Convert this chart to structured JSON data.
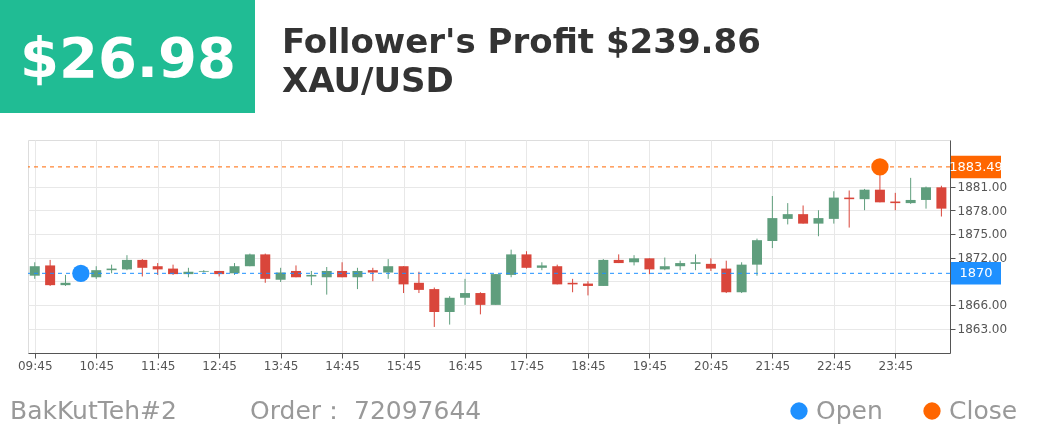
{
  "chart_data": {
    "type": "candlestick",
    "title": "Follower's Profit $239.86",
    "subtitle": "XAU/USD",
    "annotations": [
      "$26.98",
      "BakKutTeh#2",
      "Order：  72097644"
    ],
    "x": [
      9.75,
      10,
      10.25,
      10.75,
      11,
      11.25,
      11.5,
      11.75,
      12,
      12.25,
      12.5,
      12.75,
      13,
      13.25,
      13.5,
      13.75,
      14,
      14.25,
      14.5,
      14.75,
      15,
      15.25,
      15.5,
      15.75,
      16,
      16.25,
      16.5,
      16.75,
      17,
      17.25,
      17.5,
      17.75,
      18,
      18.25,
      18.5,
      18.75,
      19,
      19.25,
      19.5,
      19.75,
      20,
      20.25,
      20.5,
      20.75,
      21,
      21.25,
      21.5,
      21.75,
      22,
      22.25,
      22.5,
      22.75,
      23,
      23.25,
      23.5,
      23.75,
      24,
      24.25,
      24.5
    ],
    "ohlc": [
      [
        1869.7,
        1871.4,
        1869.3,
        1870.9
      ],
      [
        1871.0,
        1871.7,
        1868.4,
        1868.5
      ],
      [
        1868.5,
        1869.8,
        1868.4,
        1868.8
      ],
      [
        1869.5,
        1870.9,
        1869.3,
        1870.4
      ],
      [
        1870.4,
        1871.1,
        1870.0,
        1870.6
      ],
      [
        1870.5,
        1872.3,
        1870.4,
        1871.7
      ],
      [
        1871.7,
        1871.8,
        1869.6,
        1870.7
      ],
      [
        1870.9,
        1871.3,
        1869.8,
        1870.5
      ],
      [
        1870.6,
        1871.1,
        1869.8,
        1869.9
      ],
      [
        1869.9,
        1870.7,
        1869.5,
        1870.2
      ],
      [
        1870.2,
        1870.4,
        1870.1,
        1870.3
      ],
      [
        1870.3,
        1870.3,
        1869.6,
        1869.9
      ],
      [
        1870.0,
        1871.3,
        1869.8,
        1870.9
      ],
      [
        1870.9,
        1872.5,
        1870.9,
        1872.4
      ],
      [
        1872.4,
        1872.5,
        1868.8,
        1869.3
      ],
      [
        1869.2,
        1870.7,
        1868.9,
        1870.1
      ],
      [
        1870.3,
        1871.0,
        1869.5,
        1869.5
      ],
      [
        1869.6,
        1870.3,
        1868.5,
        1869.8
      ],
      [
        1869.5,
        1870.8,
        1867.3,
        1870.3
      ],
      [
        1870.3,
        1871.4,
        1869.5,
        1869.5
      ],
      [
        1869.5,
        1870.7,
        1868.0,
        1870.3
      ],
      [
        1870.4,
        1870.7,
        1869.0,
        1870.1
      ],
      [
        1870.1,
        1871.8,
        1869.3,
        1870.9
      ],
      [
        1870.9,
        1870.9,
        1867.5,
        1868.6
      ],
      [
        1868.8,
        1870.2,
        1867.5,
        1867.9
      ],
      [
        1868.0,
        1868.2,
        1863.2,
        1865.1
      ],
      [
        1865.1,
        1867.1,
        1863.5,
        1866.9
      ],
      [
        1866.9,
        1869.3,
        1866.0,
        1867.5
      ],
      [
        1867.5,
        1867.6,
        1864.8,
        1866.0
      ],
      [
        1866.0,
        1869.9,
        1866.0,
        1869.9
      ],
      [
        1869.8,
        1873.0,
        1869.5,
        1872.4
      ],
      [
        1872.4,
        1872.8,
        1870.6,
        1870.7
      ],
      [
        1870.7,
        1871.4,
        1870.4,
        1871.0
      ],
      [
        1870.9,
        1871.1,
        1868.6,
        1868.6
      ],
      [
        1868.8,
        1869.3,
        1867.6,
        1868.6
      ],
      [
        1868.7,
        1869.0,
        1867.2,
        1868.4
      ],
      [
        1868.4,
        1871.8,
        1868.4,
        1871.7
      ],
      [
        1871.7,
        1872.4,
        1871.3,
        1871.3
      ],
      [
        1871.4,
        1872.3,
        1871.0,
        1871.9
      ],
      [
        1871.9,
        1871.9,
        1869.9,
        1870.5
      ],
      [
        1870.5,
        1872.0,
        1870.4,
        1870.9
      ],
      [
        1870.9,
        1871.6,
        1870.4,
        1871.3
      ],
      [
        1871.2,
        1872.4,
        1870.4,
        1871.4
      ],
      [
        1871.2,
        1871.9,
        1870.3,
        1870.6
      ],
      [
        1870.6,
        1871.6,
        1867.5,
        1867.6
      ],
      [
        1867.6,
        1871.4,
        1867.5,
        1871.1
      ],
      [
        1871.1,
        1874.4,
        1869.7,
        1874.2
      ],
      [
        1874.1,
        1879.8,
        1873.2,
        1877.0
      ],
      [
        1876.9,
        1878.9,
        1876.2,
        1877.5
      ],
      [
        1877.5,
        1878.6,
        1876.3,
        1876.3
      ],
      [
        1876.3,
        1878.0,
        1874.7,
        1877.0
      ],
      [
        1876.9,
        1880.4,
        1876.3,
        1879.6
      ],
      [
        1879.6,
        1880.5,
        1875.8,
        1879.4
      ],
      [
        1879.4,
        1880.7,
        1878.0,
        1880.6
      ],
      [
        1880.6,
        1882.5,
        1879.0,
        1879.0
      ],
      [
        1879.1,
        1880.2,
        1878.0,
        1878.9
      ],
      [
        1878.9,
        1882.1,
        1878.8,
        1879.3
      ],
      [
        1879.3,
        1881.0,
        1878.2,
        1880.9
      ],
      [
        1880.9,
        1881.1,
        1877.2,
        1878.2
      ]
    ],
    "colors": [
      "#5f9e7d",
      "#d9463b",
      "#5f9e7d",
      "#5f9e7d",
      "#5f9e7d",
      "#5f9e7d",
      "#d9463b",
      "#d9463b",
      "#d9463b",
      "#5f9e7d",
      "#5f9e7d",
      "#d9463b",
      "#5f9e7d",
      "#5f9e7d",
      "#d9463b",
      "#5f9e7d",
      "#d9463b",
      "#5f9e7d",
      "#5f9e7d",
      "#d9463b",
      "#5f9e7d",
      "#d9463b",
      "#5f9e7d",
      "#d9463b",
      "#d9463b",
      "#d9463b",
      "#5f9e7d",
      "#5f9e7d",
      "#d9463b",
      "#5f9e7d",
      "#5f9e7d",
      "#d9463b",
      "#5f9e7d",
      "#d9463b",
      "#d9463b",
      "#d9463b",
      "#5f9e7d",
      "#d9463b",
      "#5f9e7d",
      "#d9463b",
      "#5f9e7d",
      "#5f9e7d",
      "#5f9e7d",
      "#d9463b",
      "#d9463b",
      "#5f9e7d",
      "#5f9e7d",
      "#5f9e7d",
      "#5f9e7d",
      "#d9463b",
      "#5f9e7d",
      "#5f9e7d",
      "#d9463b",
      "#5f9e7d",
      "#d9463b",
      "#d9463b",
      "#5f9e7d",
      "#5f9e7d",
      "#d9463b"
    ],
    "series": [
      {
        "name": "Open",
        "type": "scatter",
        "color": "#1e90ff",
        "x": [
          10.5
        ],
        "values": [
          1870
        ]
      },
      {
        "name": "Close",
        "type": "scatter",
        "color": "#ff6600",
        "x": [
          23.5
        ],
        "values": [
          1883.49
        ]
      }
    ],
    "marker": "circle",
    "ref_lines": [
      {
        "axis": "y",
        "value": 1883.49,
        "label": "1883.49",
        "color": "#ff6600",
        "line_style": "dashed"
      },
      {
        "axis": "y",
        "value": 1870,
        "label": "1870",
        "color": "#1e90ff",
        "line_style": "dashed"
      }
    ],
    "xlim": [
      9.64,
      24.64
    ],
    "xticks": [
      {
        "value": 9.75,
        "label": "09:45"
      },
      {
        "value": 10.75,
        "label": "10:45"
      },
      {
        "value": 11.75,
        "label": "11:45"
      },
      {
        "value": 12.75,
        "label": "12:45"
      },
      {
        "value": 13.75,
        "label": "13:45"
      },
      {
        "value": 14.75,
        "label": "14:45"
      },
      {
        "value": 15.75,
        "label": "15:45"
      },
      {
        "value": 16.75,
        "label": "16:45"
      },
      {
        "value": 17.75,
        "label": "17:45"
      },
      {
        "value": 18.75,
        "label": "18:45"
      },
      {
        "value": 19.75,
        "label": "19:45"
      },
      {
        "value": 20.75,
        "label": "20:45"
      },
      {
        "value": 21.75,
        "label": "21:45"
      },
      {
        "value": 22.75,
        "label": "22:45"
      },
      {
        "value": 23.75,
        "label": "23:45"
      }
    ],
    "ylim": [
      1859.9,
      1886.9
    ],
    "yticks": [
      {
        "value": 1863,
        "label": "1863.00"
      },
      {
        "value": 1866,
        "label": "1866.00"
      },
      {
        "value": 1869,
        "label": null
      },
      {
        "value": 1872,
        "label": "1872.00"
      },
      {
        "value": 1875,
        "label": "1875.00"
      },
      {
        "value": 1878,
        "label": "1878.00"
      },
      {
        "value": 1881,
        "label": "1881.00"
      }
    ],
    "grid": true,
    "legend": "bottom right"
  }
}
